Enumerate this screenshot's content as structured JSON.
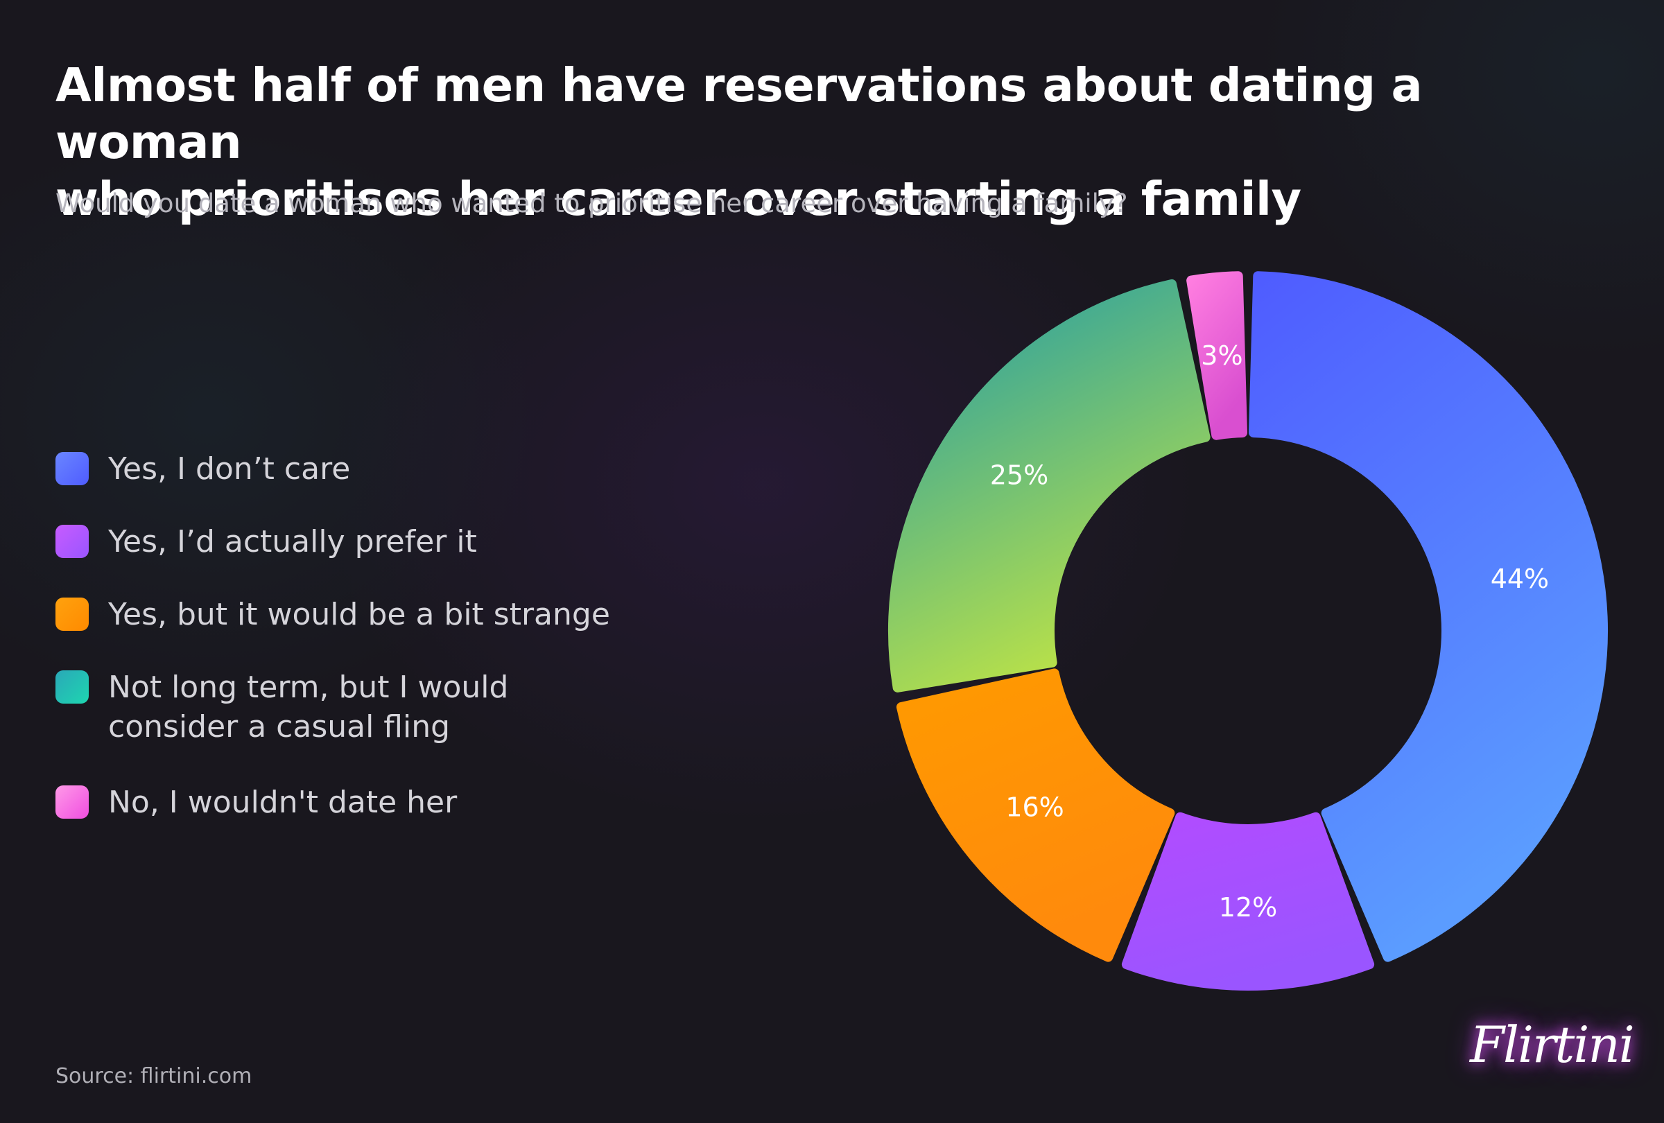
{
  "title_lines": [
    "Almost half of men have reservations about dating a woman",
    "who prioritises her career over starting a family"
  ],
  "subtitle": "Would you date a woman who wanted to prioritise her career over having a family?",
  "source": "Source: flirtini.com",
  "logo": "Flirtini",
  "chart_data": {
    "type": "pie",
    "variant": "donut",
    "categories": [
      "Yes, I don’t care",
      "Yes, I’d actually prefer it",
      "Yes, but it would be a bit strange",
      "Not long term, but I would consider a casual fling",
      "No, I wouldn't date her"
    ],
    "legend_lines": [
      [
        "Yes, I don’t care"
      ],
      [
        "Yes, I’d actually prefer it"
      ],
      [
        "Yes, but it would be a bit strange"
      ],
      [
        "Not long term, but I would",
        "consider a casual fling"
      ],
      [
        "No, I wouldn't date her"
      ]
    ],
    "values": [
      44,
      12,
      16,
      25,
      3
    ],
    "data_labels": [
      "44%",
      "12%",
      "16%",
      "25%",
      "3%"
    ],
    "colors": [
      [
        "#4f5cff",
        "#5b9cff"
      ],
      [
        "#b24cff",
        "#9a55ff"
      ],
      [
        "#ff9a00",
        "#ff8a0c"
      ],
      [
        "#1f9aa8",
        "#b7e04a"
      ],
      [
        "#ff7ee0",
        "#d94fd0"
      ]
    ],
    "legend_placement": "left",
    "direction": "clockwise-from-top"
  }
}
